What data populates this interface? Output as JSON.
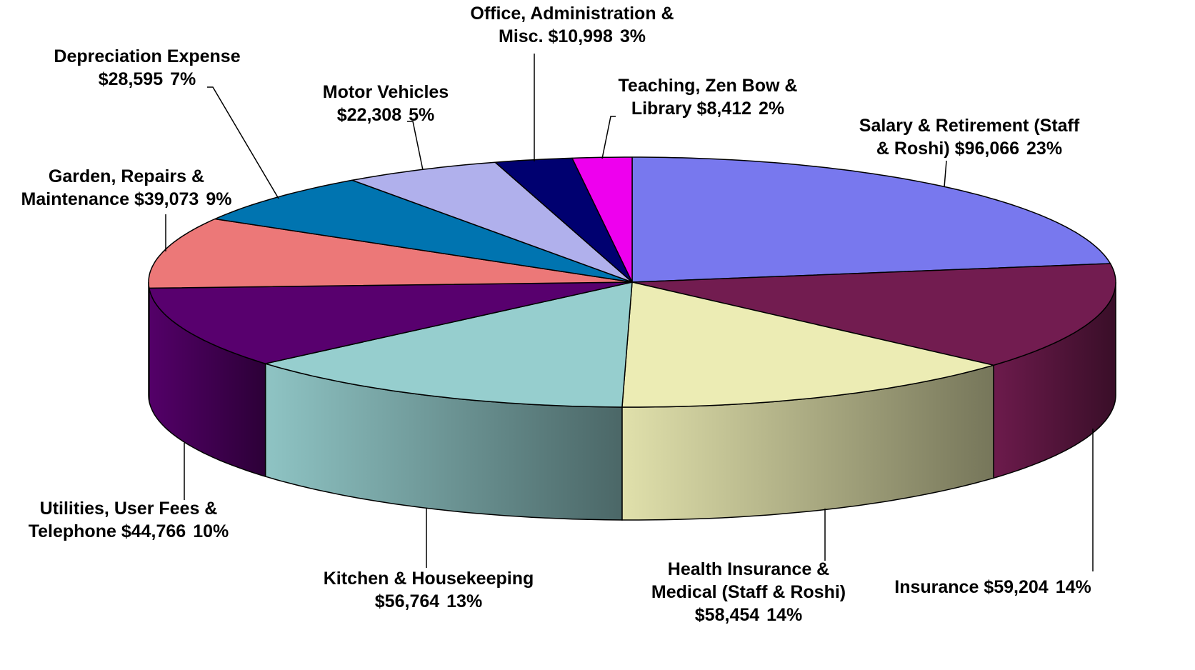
{
  "chart_data": {
    "type": "pie",
    "categories": [
      "Salary & Retirement (Staff & Roshi)",
      "Insurance",
      "Health Insurance & Medical (Staff & Roshi)",
      "Kitchen & Housekeeping",
      "Utilities, User Fees & Telephone",
      "Garden, Repairs & Maintenance",
      "Depreciation Expense",
      "Motor Vehicles",
      "Office, Administration & Misc.",
      "Teaching, Zen Bow & Library"
    ],
    "values": [
      96066,
      59204,
      58454,
      56764,
      44766,
      39073,
      28595,
      22308,
      10998,
      8412
    ],
    "value_labels": [
      "$96,066",
      "$59,204",
      "$58,454",
      "$56,764",
      "$44,766",
      "$39,073",
      "$28,595",
      "$22,308",
      "$10,998",
      "$8,412"
    ],
    "percent_labels": [
      "23%",
      "14%",
      "14%",
      "13%",
      "10%",
      "9%",
      "7%",
      "5%",
      "3%",
      "2%"
    ],
    "colors": [
      "#7878ee",
      "#721c50",
      "#ececb4",
      "#96cece",
      "#58006e",
      "#ec7878",
      "#0074b0",
      "#b0b0ec",
      "#000070",
      "#ee00ee"
    ]
  }
}
